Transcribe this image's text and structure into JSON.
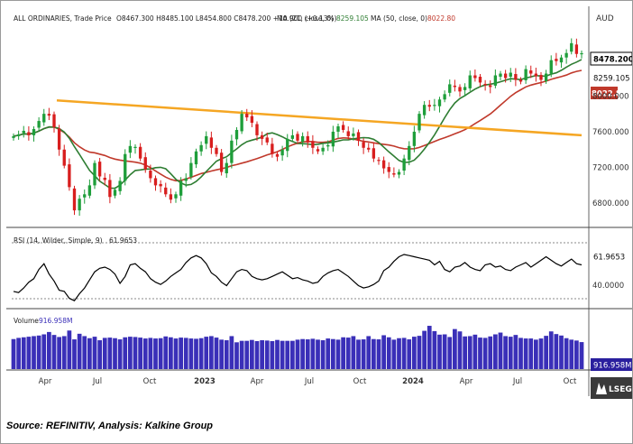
{
  "price_panel": {
    "header": {
      "instrument": "ALL ORDINARIES, Trade Price",
      "ohlc": "O8467.300  H8485.100  L8454.800  C8478.200  +10.900 (+0.13%)",
      "ma21": "MA (21, close, 0)",
      "ma21_value": "8259.105",
      "ma50": "MA (50, close, 0)",
      "ma50_value": "8022.80"
    },
    "currency": "AUD",
    "last_price_tag": "8478.200",
    "ma21_tag": "8259.105",
    "ma50_tag": "8022.80"
  },
  "rsi_panel": {
    "header": "RSI (14, Wilder, Simple, 9)",
    "value": "61.9653",
    "tag": "61.9653",
    "level_label": "40.0000"
  },
  "volume_panel": {
    "header": "Volume",
    "value": "916.958M",
    "tag": "916.958M"
  },
  "footer": {
    "source": "Source: REFINITIV, Analysis: Kalkine Group",
    "logo_text": "LSEG"
  },
  "colors": {
    "up": "#1e9e3a",
    "down": "#d81e1e",
    "ma21": "#2e7d32",
    "ma50": "#c0392b",
    "trendline": "#f5a623",
    "volume": "#3a2fb8",
    "rsi": "#000000"
  },
  "chart_data": [
    {
      "type": "candlestick",
      "title": "ALL ORDINARIES, Trade Price",
      "x_tick_labels": [
        "Apr",
        "Jul",
        "Oct",
        "2023",
        "Apr",
        "Jul",
        "Oct",
        "2024",
        "Apr",
        "Jul",
        "Oct"
      ],
      "y_tick_labels": [
        "8000.000",
        "7600.000",
        "7200.000",
        "6800.000"
      ],
      "ylim": [
        6580,
        8740
      ],
      "last": {
        "open": 8467.3,
        "high": 8485.1,
        "low": 8454.8,
        "close": 8478.2,
        "change": 10.9,
        "change_pct": 0.13
      },
      "series": [
        {
          "name": "ALL ORDINARIES",
          "type": "candlestick",
          "close": [
            7550,
            7570,
            7610,
            7560,
            7630,
            7720,
            7800,
            7780,
            7650,
            7400,
            7220,
            6980,
            6720,
            6850,
            6900,
            7000,
            7250,
            7100,
            7060,
            6870,
            6950,
            7050,
            7350,
            7440,
            7430,
            7300,
            7180,
            7080,
            7000,
            6990,
            6900,
            6840,
            6900,
            7050,
            7080,
            7250,
            7380,
            7450,
            7550,
            7420,
            7350,
            7150,
            7250,
            7500,
            7620,
            7800,
            7760,
            7700,
            7560,
            7520,
            7480,
            7350,
            7320,
            7400,
            7520,
            7560,
            7500,
            7550,
            7480,
            7420,
            7380,
            7420,
            7450,
            7600,
            7660,
            7620,
            7550,
            7580,
            7500,
            7420,
            7400,
            7300,
            7280,
            7190,
            7150,
            7120,
            7150,
            7300,
            7440,
            7600,
            7800,
            7900,
            7880,
            7900,
            7960,
            8020,
            8130,
            8100,
            8050,
            8100,
            8230,
            8200,
            8150,
            8120,
            8100,
            8230,
            8250,
            8200,
            8260,
            8180,
            8160,
            8300,
            8250,
            8220,
            8180,
            8250,
            8400,
            8390,
            8430,
            8480,
            8590,
            8470,
            8478
          ]
        },
        {
          "name": "MA (21, close, 0)",
          "type": "line"
        },
        {
          "name": "MA (50, close, 0)",
          "type": "line"
        }
      ]
    },
    {
      "type": "line",
      "title": "RSI (14, Wilder, Simple, 9)",
      "y_tick_labels": [
        "40.0000"
      ],
      "ylim": [
        28,
        78
      ],
      "series": [
        {
          "name": "RSI",
          "values": [
            39,
            38,
            42,
            47,
            50,
            58,
            63,
            54,
            48,
            40,
            39,
            33,
            31,
            37,
            42,
            49,
            56,
            59,
            60,
            58,
            54,
            46,
            52,
            62,
            63,
            59,
            56,
            50,
            47,
            45,
            48,
            52,
            55,
            58,
            64,
            68,
            70,
            68,
            63,
            55,
            52,
            47,
            44,
            50,
            56,
            58,
            57,
            52,
            50,
            49,
            50,
            52,
            54,
            56,
            53,
            50,
            51,
            49,
            48,
            46,
            47,
            52,
            55,
            57,
            58,
            55,
            52,
            48,
            44,
            42,
            43,
            45,
            48,
            57,
            60,
            65,
            69,
            71,
            70,
            69,
            68,
            67,
            66,
            62,
            65,
            58,
            56,
            60,
            61,
            64,
            60,
            58,
            57,
            62,
            63,
            60,
            61,
            58,
            57,
            60,
            62,
            64,
            60,
            63,
            66,
            69,
            66,
            63,
            61,
            64,
            67,
            63,
            62
          ]
        }
      ]
    },
    {
      "type": "bar",
      "title": "Volume",
      "units": "M",
      "ylim": [
        0,
        1900
      ],
      "series": [
        {
          "name": "Volume",
          "values": [
            1020,
            1060,
            1080,
            1100,
            1120,
            1140,
            1180,
            1260,
            1160,
            1090,
            1120,
            1310,
            1010,
            1200,
            1120,
            1050,
            1100,
            980,
            1060,
            1070,
            1050,
            1010,
            1080,
            1100,
            1090,
            1070,
            1040,
            1060,
            1040,
            1050,
            1110,
            1080,
            1040,
            1070,
            1060,
            1040,
            1030,
            1050,
            1100,
            1120,
            1070,
            1000,
            980,
            1120,
            910,
            960,
            960,
            990,
            950,
            980,
            970,
            950,
            990,
            960,
            960,
            960,
            1000,
            1020,
            1010,
            1030,
            1000,
            980,
            1040,
            1020,
            1000,
            1080,
            1070,
            1120,
            1000,
            1010,
            1120,
            1020,
            1010,
            1150,
            1080,
            1000,
            1050,
            1060,
            1010,
            1100,
            1130,
            1300,
            1470,
            1290,
            1170,
            1180,
            1090,
            1360,
            1280,
            1110,
            1120,
            1170,
            1070,
            1060,
            1110,
            1180,
            1240,
            1120,
            1100,
            1160,
            1060,
            1040,
            1040,
            1000,
            1040,
            1130,
            1280,
            1190,
            1140,
            1050,
            1000,
            970,
            917
          ]
        }
      ]
    }
  ]
}
